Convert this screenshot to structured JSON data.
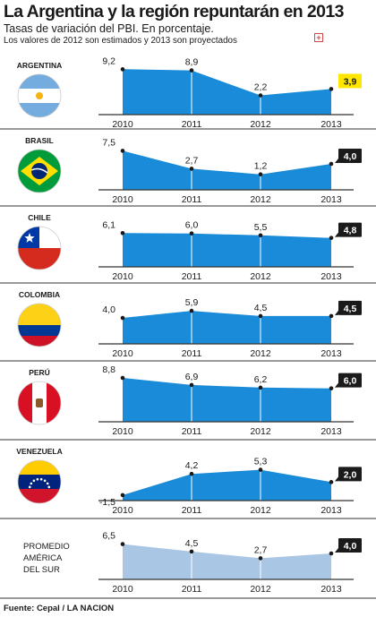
{
  "header": {
    "title": "La Argentina y la región repuntarán en 2013",
    "subtitle": "Tasas de variación del PBI. En porcentaje.",
    "note": "Los valores de 2012 son estimados y 2013 son proyectados"
  },
  "footer": {
    "source": "Fuente: Cepal / LA NACION"
  },
  "colors": {
    "series": "#1a8bd8",
    "average": "#a9c6e4",
    "last_value_bg": "#1a1a1a",
    "argentina_highlight": "#ffe600"
  },
  "chart_data": [
    {
      "type": "area",
      "name": "ARGENTINA",
      "categories": [
        "2010",
        "2011",
        "2012",
        "2013"
      ],
      "values": [
        9.2,
        8.9,
        2.2,
        3.9
      ],
      "labels": [
        "9,2",
        "8,9",
        "2,2",
        "3,9"
      ],
      "flag": "argentina-flag"
    },
    {
      "type": "area",
      "name": "BRASIL",
      "categories": [
        "2010",
        "2011",
        "2012",
        "2013"
      ],
      "values": [
        7.5,
        2.7,
        1.2,
        4.0
      ],
      "labels": [
        "7,5",
        "2,7",
        "1,2",
        "4,0"
      ],
      "flag": "brazil-flag"
    },
    {
      "type": "area",
      "name": "CHILE",
      "categories": [
        "2010",
        "2011",
        "2012",
        "2013"
      ],
      "values": [
        6.1,
        6.0,
        5.5,
        4.8
      ],
      "labels": [
        "6,1",
        "6,0",
        "5,5",
        "4,8"
      ],
      "flag": "chile-flag"
    },
    {
      "type": "area",
      "name": "COLOMBIA",
      "categories": [
        "2010",
        "2011",
        "2012",
        "2013"
      ],
      "values": [
        4.0,
        5.9,
        4.5,
        4.5
      ],
      "labels": [
        "4,0",
        "5,9",
        "4,5",
        "4,5"
      ],
      "flag": "colombia-flag"
    },
    {
      "type": "area",
      "name": "PERÚ",
      "categories": [
        "2010",
        "2011",
        "2012",
        "2013"
      ],
      "values": [
        8.8,
        6.9,
        6.2,
        6.0
      ],
      "labels": [
        "8,8",
        "6,9",
        "6,2",
        "6,0"
      ],
      "flag": "peru-flag"
    },
    {
      "type": "area",
      "name": "VENEZUELA",
      "categories": [
        "2010",
        "2011",
        "2012",
        "2013"
      ],
      "values": [
        -1.5,
        4.2,
        5.3,
        2.0
      ],
      "labels": [
        "-1,5",
        "4,2",
        "5,3",
        "2,0"
      ],
      "flag": "venezuela-flag"
    },
    {
      "type": "area",
      "name": "PROMEDIO AMÉRICA DEL SUR",
      "name_lines": [
        "PROMEDIO",
        "AMÉRICA",
        "DEL SUR"
      ],
      "categories": [
        "2010",
        "2011",
        "2012",
        "2013"
      ],
      "values": [
        6.5,
        4.5,
        2.7,
        4.0
      ],
      "labels": [
        "6,5",
        "4,5",
        "2,7",
        "4,0"
      ]
    }
  ]
}
